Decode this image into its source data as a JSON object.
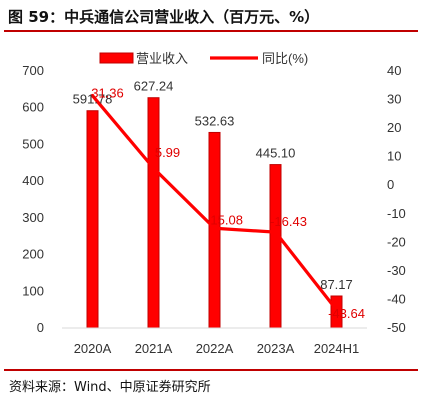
{
  "figure": {
    "title": "图 59：中兵通信公司营业收入（百万元、%）",
    "source": "资料来源：Wind、中原证券研究所"
  },
  "chart_data": {
    "type": "bar",
    "categories": [
      "2020A",
      "2021A",
      "2022A",
      "2023A",
      "2024H1"
    ],
    "series": [
      {
        "name": "营业收入",
        "type": "bar",
        "axis": "left",
        "values": [
          591.78,
          627.24,
          532.63,
          445.1,
          87.17
        ],
        "labels": [
          "591.78",
          "627.24",
          "532.63",
          "445.10",
          "87.17"
        ]
      },
      {
        "name": "同比(%)",
        "type": "line",
        "axis": "right",
        "values": [
          31.36,
          5.99,
          -15.08,
          -16.43,
          -43.64
        ],
        "labels": [
          "31.36",
          "5.99",
          "-15.08",
          "-16.43",
          "-43.64"
        ]
      }
    ],
    "y_left": {
      "min": 0,
      "max": 700,
      "ticks": [
        0,
        100,
        200,
        300,
        400,
        500,
        600,
        700
      ]
    },
    "y_right": {
      "min": -50,
      "max": 40,
      "ticks": [
        40,
        30,
        20,
        10,
        0,
        -10,
        -20,
        -30,
        -40,
        -50
      ]
    },
    "legend": "top",
    "grid": false,
    "colors": {
      "bar": "#ff0000",
      "bar_edge": "#c00000",
      "line": "#ff0000",
      "line_label": "#e00000"
    }
  }
}
